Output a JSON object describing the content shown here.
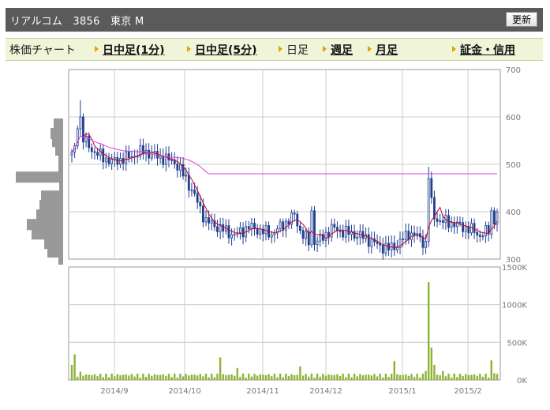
{
  "header": {
    "title": "リアルコム　3856　東京 M",
    "refresh_label": "更新"
  },
  "nav": {
    "items": [
      {
        "label": "株価チャート",
        "link": false,
        "arrow": false
      },
      {
        "label": "日中足(1分)",
        "link": true,
        "arrow": true
      },
      {
        "label": "日中足(5分)",
        "link": true,
        "arrow": true
      },
      {
        "label": "日足",
        "link": false,
        "arrow": true
      },
      {
        "label": "週足",
        "link": true,
        "arrow": true
      },
      {
        "label": "月足",
        "link": true,
        "arrow": true
      },
      {
        "label": "証金・信用",
        "link": true,
        "arrow": true
      }
    ]
  },
  "colors": {
    "up_candle": "#ffffff",
    "down_candle": "#1f3f8f",
    "ma_short": "#cc0033",
    "ma_long": "#dd44dd",
    "volume": "#8db336",
    "profile": "#999999",
    "grid": "#cccccc"
  },
  "chart_data": [
    {
      "type": "candlestick",
      "x_ticks": [
        "2014/9",
        "2014/10",
        "2014/11",
        "2014/12",
        "2015/1",
        "2015/2"
      ],
      "y_ticks": [
        "700",
        "600",
        "500",
        "400",
        "300"
      ],
      "ylim": [
        300,
        700
      ],
      "ohlc_key_points": [
        {
          "period": "2014/8 late",
          "high": 635,
          "low": 500,
          "close": 555
        },
        {
          "period": "2014/9",
          "high": 550,
          "low": 490,
          "close": 515
        },
        {
          "period": "2014/10 early",
          "high": 525,
          "low": 460,
          "close": 480
        },
        {
          "period": "2014/10 mid",
          "high": 445,
          "low": 325,
          "close": 345
        },
        {
          "period": "2014/11",
          "high": 405,
          "low": 340,
          "close": 380
        },
        {
          "period": "2014/12",
          "high": 375,
          "low": 310,
          "close": 345
        },
        {
          "period": "2015/1 late",
          "high": 495,
          "low": 325,
          "close": 380
        },
        {
          "period": "2015/2",
          "high": 425,
          "low": 340,
          "close": 395
        }
      ],
      "moving_averages": [
        "short",
        "long"
      ],
      "price_volume_profile": "left side histogram",
      "grid": true
    },
    {
      "type": "bar",
      "title": "volume",
      "y_ticks": [
        "1500K",
        "1000K",
        "500K",
        "0K"
      ],
      "ylim": [
        0,
        1500000
      ],
      "peak_value": 1300000
    }
  ]
}
